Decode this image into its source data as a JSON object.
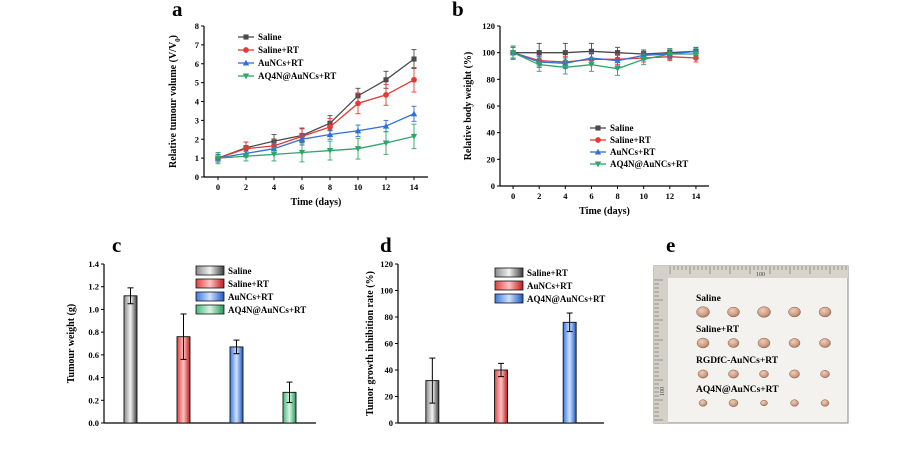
{
  "panels": {
    "a": "a",
    "b": "b",
    "c": "c",
    "d": "d",
    "e": "e"
  },
  "colors": {
    "saline": "#4a4a4a",
    "saline_rt": "#e53935",
    "aunc_rt": "#2f6fd8",
    "aq4n_rt": "#2ea56b"
  },
  "chart_data": [
    {
      "id": "a",
      "type": "line",
      "xlabel": "Time (days)",
      "ylabel": "Relative tumour volume (V/V",
      "ylabel_sub": "0",
      "ylabel_end": ")",
      "x": [
        0,
        2,
        4,
        6,
        8,
        10,
        12,
        14
      ],
      "xlim": [
        -1,
        15
      ],
      "ylim": [
        0,
        8
      ],
      "xticks": [
        0,
        2,
        4,
        6,
        8,
        10,
        12,
        14
      ],
      "yticks": [
        0,
        1,
        2,
        3,
        4,
        5,
        6,
        7,
        8
      ],
      "legend_position": "top-left",
      "series": [
        {
          "name": "Saline",
          "color": "#4a4a4a",
          "marker": "square",
          "values": [
            1.0,
            1.55,
            1.9,
            2.2,
            2.85,
            4.3,
            5.15,
            6.25
          ],
          "errors": [
            0.2,
            0.3,
            0.35,
            0.35,
            0.4,
            0.4,
            0.45,
            0.5
          ]
        },
        {
          "name": "Saline+RT",
          "color": "#e53935",
          "marker": "circle",
          "values": [
            1.0,
            1.5,
            1.65,
            2.15,
            2.65,
            3.9,
            4.35,
            5.15
          ],
          "errors": [
            0.2,
            0.35,
            0.35,
            0.45,
            0.45,
            0.55,
            0.55,
            0.65
          ]
        },
        {
          "name": "AuNCs+RT",
          "color": "#2f6fd8",
          "marker": "triangle",
          "values": [
            1.0,
            1.25,
            1.5,
            2.0,
            2.25,
            2.45,
            2.7,
            3.35
          ],
          "errors": [
            0.2,
            0.2,
            0.3,
            0.3,
            0.25,
            0.3,
            0.3,
            0.4
          ]
        },
        {
          "name": "AQ4N@AuNCs+RT",
          "color": "#2ea56b",
          "marker": "triangle-down",
          "values": [
            1.0,
            1.1,
            1.2,
            1.3,
            1.4,
            1.5,
            1.8,
            2.15
          ],
          "errors": [
            0.3,
            0.25,
            0.35,
            0.5,
            0.5,
            0.55,
            0.6,
            0.65
          ]
        }
      ]
    },
    {
      "id": "b",
      "type": "line",
      "xlabel": "Time (days)",
      "ylabel": "Relative body weight (%)",
      "x": [
        0,
        2,
        4,
        6,
        8,
        10,
        12,
        14
      ],
      "xlim": [
        -1,
        15
      ],
      "ylim": [
        0,
        120
      ],
      "xticks": [
        0,
        2,
        4,
        6,
        8,
        10,
        12,
        14
      ],
      "yticks": [
        0,
        20,
        40,
        60,
        80,
        100,
        120
      ],
      "legend_position": "bottom-center",
      "series": [
        {
          "name": "Saline",
          "color": "#4a4a4a",
          "marker": "square",
          "values": [
            100,
            100,
            100,
            101,
            100,
            99,
            100,
            101
          ],
          "errors": [
            5,
            7,
            7,
            6,
            4,
            3,
            3,
            3
          ]
        },
        {
          "name": "Saline+RT",
          "color": "#e53935",
          "marker": "circle",
          "values": [
            100,
            94,
            93,
            95,
            95,
            96,
            97,
            96
          ],
          "errors": [
            4,
            4,
            4,
            4,
            4,
            3,
            3,
            3
          ]
        },
        {
          "name": "AuNCs+RT",
          "color": "#2f6fd8",
          "marker": "triangle",
          "values": [
            100,
            93,
            92,
            96,
            94,
            98,
            99,
            101
          ],
          "errors": [
            4,
            4,
            4,
            4,
            4,
            3,
            3,
            3
          ]
        },
        {
          "name": "AQ4N@AuNCs+RT",
          "color": "#2ea56b",
          "marker": "triangle-down",
          "values": [
            100,
            91,
            89,
            91,
            88,
            95,
            99,
            99
          ],
          "errors": [
            5,
            5,
            5,
            5,
            5,
            4,
            4,
            4
          ]
        }
      ]
    },
    {
      "id": "c",
      "type": "bar",
      "xlabel": "",
      "ylabel": "Tumour weight (g)",
      "categories": [
        "Saline",
        "Saline+RT",
        "AuNCs+RT",
        "AQ4N@AuNCs+RT"
      ],
      "values": [
        1.12,
        0.76,
        0.67,
        0.27
      ],
      "errors": [
        0.07,
        0.2,
        0.06,
        0.09
      ],
      "colors": [
        "#4a4a4a",
        "#e53935",
        "#2f6fd8",
        "#2ea56b"
      ],
      "ylim": [
        0,
        1.4
      ],
      "yticks": [
        0.0,
        0.2,
        0.4,
        0.6,
        0.8,
        1.0,
        1.2,
        1.4
      ],
      "ytick_labels": [
        "0.0",
        "0.2",
        "0.4",
        "0.6",
        "0.8",
        "1.0",
        "1.2",
        "1.4"
      ],
      "legend_position": "top-right"
    },
    {
      "id": "d",
      "type": "bar",
      "xlabel": "",
      "ylabel": "Tumor growth inhibition rate (%)",
      "categories": [
        "Saline+RT",
        "AuNCs+RT",
        "AQ4N@AuNCs+RT"
      ],
      "values": [
        32,
        40,
        76
      ],
      "errors": [
        17,
        5,
        7
      ],
      "colors": [
        "#4a4a4a",
        "#e53935",
        "#2f6fd8"
      ],
      "ylim": [
        0,
        120
      ],
      "yticks": [
        0,
        20,
        40,
        60,
        80,
        100,
        120
      ],
      "legend_position": "top-right"
    }
  ],
  "photo": {
    "ruler_mark": "100",
    "side_mark": "100",
    "rows": [
      {
        "label": "Saline",
        "count": 5
      },
      {
        "label": "Saline+RT",
        "count": 5
      },
      {
        "label": "RGDfC-AuNCs+RT",
        "count": 5
      },
      {
        "label": "AQ4N@AuNCs+RT",
        "count": 5
      }
    ]
  }
}
